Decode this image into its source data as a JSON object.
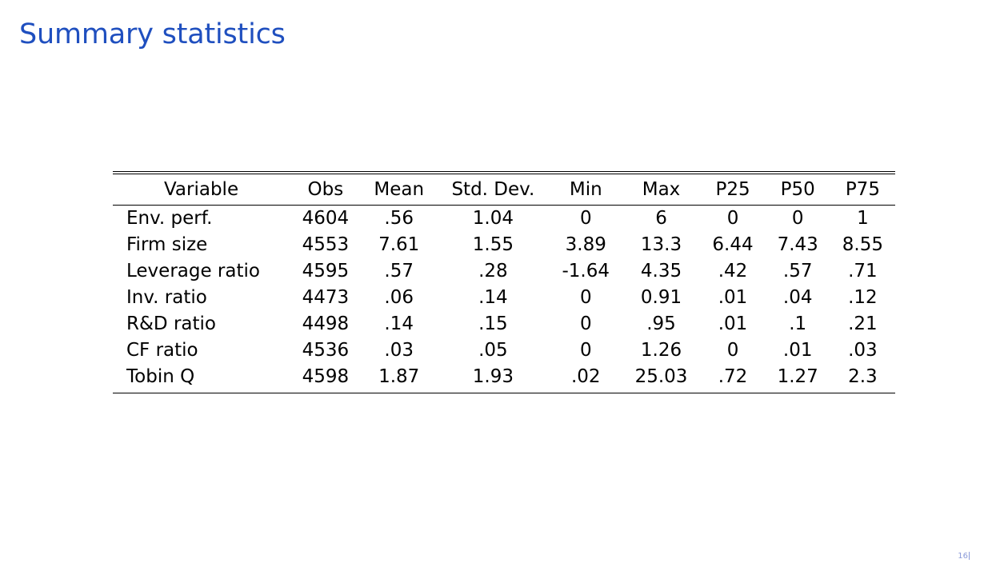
{
  "slide": {
    "title": "Summary statistics",
    "title_color": "#1f4fbf",
    "page_number": "16",
    "page_number_color": "#8a9ad8"
  },
  "table": {
    "headers": [
      "Variable",
      "Obs",
      "Mean",
      "Std. Dev.",
      "Min",
      "Max",
      "P25",
      "P50",
      "P75"
    ],
    "rows": [
      [
        "Env. perf.",
        "4604",
        ".56",
        "1.04",
        "0",
        "6",
        "0",
        "0",
        "1"
      ],
      [
        "Firm size",
        "4553",
        "7.61",
        "1.55",
        "3.89",
        "13.3",
        "6.44",
        "7.43",
        "8.55"
      ],
      [
        "Leverage ratio",
        "4595",
        ".57",
        ".28",
        "-1.64",
        "4.35",
        ".42",
        ".57",
        ".71"
      ],
      [
        "Inv. ratio",
        "4473",
        ".06",
        ".14",
        "0",
        "0.91",
        ".01",
        ".04",
        ".12"
      ],
      [
        "R&D ratio",
        "4498",
        ".14",
        ".15",
        "0",
        ".95",
        ".01",
        ".1",
        ".21"
      ],
      [
        "CF ratio",
        "4536",
        ".03",
        ".05",
        "0",
        "1.26",
        "0",
        ".01",
        ".03"
      ],
      [
        "Tobin Q",
        "4598",
        "1.87",
        "1.93",
        ".02",
        "25.03",
        ".72",
        "1.27",
        "2.3"
      ]
    ]
  }
}
